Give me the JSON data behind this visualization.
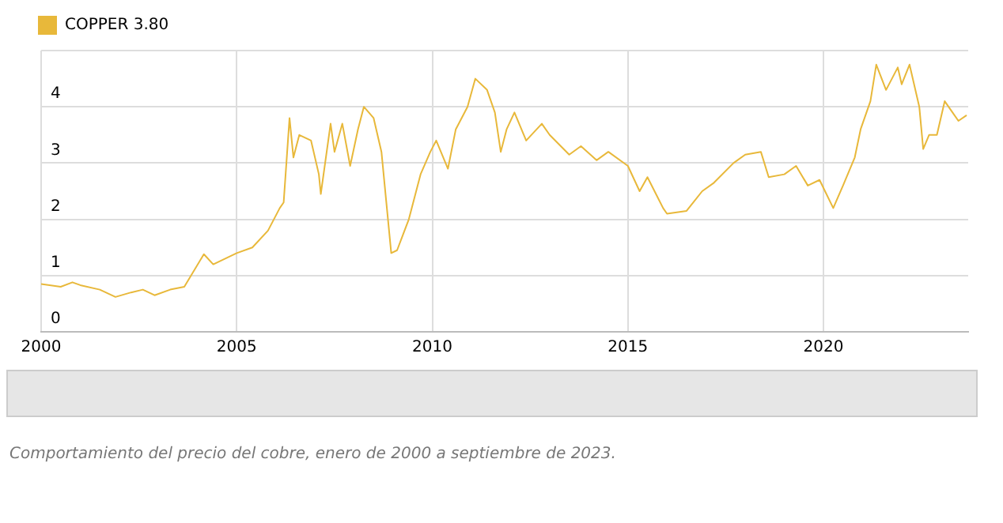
{
  "chart_data": {
    "type": "line",
    "annotations": [
      "Comportamiento del precio del cobre, enero de 2000 a septiembre de 2023."
    ],
    "xlim": [
      2000,
      2023.7
    ],
    "xticks": [
      2000,
      2005,
      2010,
      2015,
      2020
    ],
    "ylim": [
      0,
      5
    ],
    "yticks": [
      0,
      1,
      2,
      3,
      4,
      {
        "value": 5,
        "label": null
      }
    ],
    "grid": true,
    "legend": "top left",
    "marker": "none",
    "line_style": "solid",
    "series": [
      {
        "name": "COPPER 3.80",
        "color": "#e8b83a",
        "x": [
          2000.0,
          2000.5,
          2000.8,
          2001.0,
          2001.5,
          2001.9,
          2002.3,
          2002.6,
          2002.9,
          2003.3,
          2003.66,
          2004.16,
          2004.4,
          2005.0,
          2005.4,
          2005.8,
          2006.1,
          2006.2,
          2006.35,
          2006.45,
          2006.6,
          2006.9,
          2007.1,
          2007.15,
          2007.4,
          2007.5,
          2007.7,
          2007.9,
          2008.1,
          2008.25,
          2008.5,
          2008.7,
          2008.95,
          2009.1,
          2009.4,
          2009.7,
          2009.95,
          2010.1,
          2010.4,
          2010.6,
          2010.9,
          2011.1,
          2011.4,
          2011.6,
          2011.75,
          2011.9,
          2012.1,
          2012.4,
          2012.8,
          2013.0,
          2013.5,
          2013.8,
          2014.2,
          2014.5,
          2015.0,
          2015.3,
          2015.5,
          2015.9,
          2016.0,
          2016.5,
          2016.9,
          2017.2,
          2017.7,
          2018.0,
          2018.4,
          2018.6,
          2019.0,
          2019.3,
          2019.6,
          2019.9,
          2020.25,
          2020.5,
          2020.8,
          2020.95,
          2021.2,
          2021.35,
          2021.6,
          2021.9,
          2022.0,
          2022.2,
          2022.45,
          2022.55,
          2022.7,
          2022.9,
          2023.1,
          2023.3,
          2023.45,
          2023.66
        ],
        "values": [
          0.85,
          0.8,
          0.88,
          0.83,
          0.75,
          0.62,
          0.7,
          0.75,
          0.65,
          0.75,
          0.8,
          1.38,
          1.2,
          1.4,
          1.5,
          1.8,
          2.2,
          2.3,
          3.8,
          3.1,
          3.5,
          3.4,
          2.8,
          2.45,
          3.7,
          3.2,
          3.7,
          2.95,
          3.6,
          4.0,
          3.8,
          3.2,
          1.4,
          1.45,
          2.0,
          2.8,
          3.2,
          3.4,
          2.9,
          3.6,
          4.0,
          4.5,
          4.3,
          3.9,
          3.2,
          3.6,
          3.9,
          3.4,
          3.7,
          3.5,
          3.15,
          3.3,
          3.05,
          3.2,
          2.95,
          2.5,
          2.75,
          2.2,
          2.1,
          2.15,
          2.5,
          2.65,
          3.0,
          3.15,
          3.2,
          2.75,
          2.8,
          2.95,
          2.6,
          2.7,
          2.2,
          2.6,
          3.1,
          3.6,
          4.1,
          4.75,
          4.3,
          4.7,
          4.4,
          4.75,
          4.0,
          3.25,
          3.5,
          3.5,
          4.1,
          3.9,
          3.75,
          3.85
        ]
      }
    ]
  }
}
